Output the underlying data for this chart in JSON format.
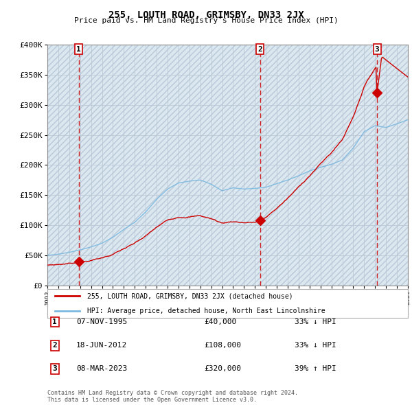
{
  "title": "255, LOUTH ROAD, GRIMSBY, DN33 2JX",
  "subtitle": "Price paid vs. HM Land Registry's House Price Index (HPI)",
  "hpi_label": "HPI: Average price, detached house, North East Lincolnshire",
  "property_label": "255, LOUTH ROAD, GRIMSBY, DN33 2JX (detached house)",
  "sales": [
    {
      "num": 1,
      "date": "07-NOV-1995",
      "price": 40000,
      "pct": "33%",
      "dir": "↓",
      "year": 1995.86
    },
    {
      "num": 2,
      "date": "18-JUN-2012",
      "price": 108000,
      "pct": "33%",
      "dir": "↓",
      "year": 2012.46
    },
    {
      "num": 3,
      "date": "08-MAR-2023",
      "price": 320000,
      "pct": "39%",
      "dir": "↑",
      "year": 2023.18
    }
  ],
  "footer1": "Contains HM Land Registry data © Crown copyright and database right 2024.",
  "footer2": "This data is licensed under the Open Government Licence v3.0.",
  "xlim": [
    1993,
    2026
  ],
  "ylim": [
    0,
    400000
  ],
  "yticks": [
    0,
    50000,
    100000,
    150000,
    200000,
    250000,
    300000,
    350000,
    400000
  ],
  "ytick_labels": [
    "£0",
    "£50K",
    "£100K",
    "£150K",
    "£200K",
    "£250K",
    "£300K",
    "£350K",
    "£400K"
  ],
  "hpi_color": "#7ab8e0",
  "property_color": "#cc0000",
  "vline_color": "#cc0000",
  "grid_color": "#c0c8d8",
  "bg_fill_color": "#dce8f0",
  "background_color": "#ffffff"
}
